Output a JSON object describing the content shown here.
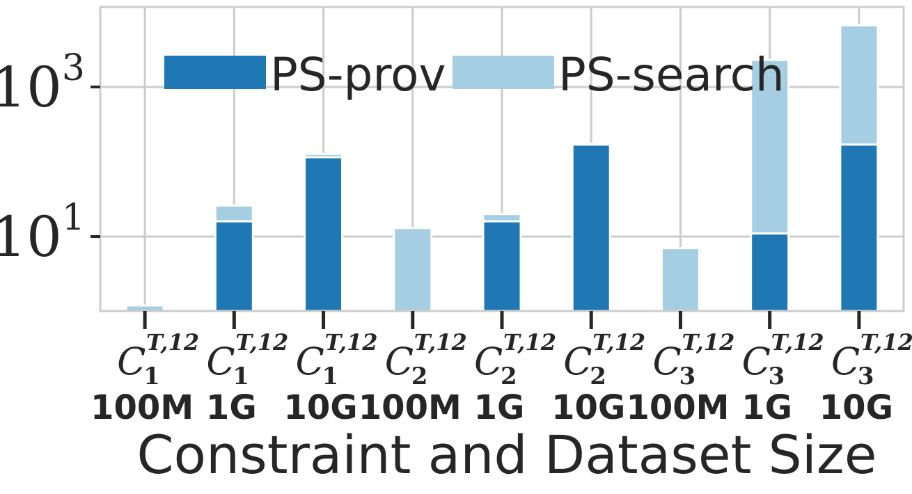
{
  "chart_data": {
    "type": "bar",
    "stacked": true,
    "xlabel": "Constraint and Dataset Size",
    "ylabel": "",
    "yscale": "log",
    "ylim": [
      1,
      9000
    ],
    "yticks": [
      {
        "value": 10,
        "base": "10",
        "exp": "1"
      },
      {
        "value": 1000,
        "base": "10",
        "exp": "3"
      }
    ],
    "grid": true,
    "legend_position": "top",
    "categories": [
      {
        "constraint": "C",
        "sub": "1",
        "sup": "T,12",
        "size": "100M"
      },
      {
        "constraint": "C",
        "sub": "1",
        "sup": "T,12",
        "size": "1G"
      },
      {
        "constraint": "C",
        "sub": "1",
        "sup": "T,12",
        "size": "10G"
      },
      {
        "constraint": "C",
        "sub": "2",
        "sup": "T,12",
        "size": "100M"
      },
      {
        "constraint": "C",
        "sub": "2",
        "sup": "T,12",
        "size": "1G"
      },
      {
        "constraint": "C",
        "sub": "2",
        "sup": "T,12",
        "size": "10G"
      },
      {
        "constraint": "C",
        "sub": "3",
        "sup": "T,12",
        "size": "100M"
      },
      {
        "constraint": "C",
        "sub": "3",
        "sup": "T,12",
        "size": "1G"
      },
      {
        "constraint": "C",
        "sub": "3",
        "sup": "T,12",
        "size": "10G"
      }
    ],
    "series": [
      {
        "name": "PS-prov",
        "color": "#1f77b4",
        "values": [
          0,
          16,
          115,
          0,
          16,
          170,
          0,
          11,
          170
        ]
      },
      {
        "name": "PS-search",
        "color": "#a6cee3",
        "values": [
          1.2,
          10,
          12,
          13,
          4,
          5,
          7,
          2290,
          6500
        ]
      }
    ]
  }
}
